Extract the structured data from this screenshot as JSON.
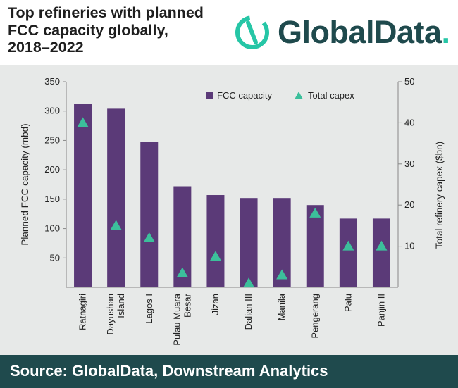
{
  "header": {
    "title_lines": [
      "Top refineries with planned",
      "FCC capacity globally,",
      "2018–2022"
    ],
    "logo": {
      "text": "GlobalData",
      "dot": ".",
      "icon": "globaldata-logo-icon"
    }
  },
  "footer": {
    "source": "Source: GlobalData, Downstream Analytics"
  },
  "colors": {
    "bar": "#5b3a78",
    "marker": "#3cbf9b",
    "brand": "#1f4a4d",
    "accent": "#26c6a6",
    "panel": "#e7e9e8"
  },
  "chart_data": {
    "type": "bar",
    "categories": [
      [
        "Ratnagiri"
      ],
      [
        "Dayushan",
        "Island"
      ],
      [
        "Lagos I"
      ],
      [
        "Pulau Muara",
        "Besar"
      ],
      [
        "Jizan"
      ],
      [
        "Dalian III"
      ],
      [
        "Manila"
      ],
      [
        "Pengerang"
      ],
      [
        "Palu"
      ],
      [
        "Panjin II"
      ]
    ],
    "series": [
      {
        "name": "FCC capacity",
        "type": "bar",
        "axis": "left",
        "values": [
          312,
          304,
          247,
          172,
          157,
          152,
          152,
          140,
          117,
          117
        ]
      },
      {
        "name": "Total capex",
        "type": "marker",
        "axis": "right",
        "values": [
          40,
          15,
          12,
          3.5,
          7.5,
          1,
          3,
          18,
          10,
          10
        ]
      }
    ],
    "ylabel": "Planned FCC capacity (mbd)",
    "y2label": "Total refinery capex ($bn)",
    "ylim": [
      0,
      350
    ],
    "y2lim": [
      0,
      50
    ],
    "yticks": [
      50,
      100,
      150,
      200,
      250,
      300,
      350
    ],
    "y2ticks": [
      10,
      20,
      30,
      40,
      50
    ],
    "grid": false,
    "legend": "top-right"
  }
}
